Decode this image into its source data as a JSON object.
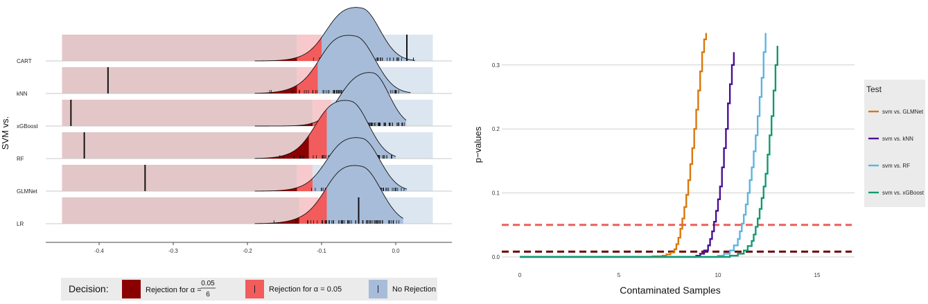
{
  "colors": {
    "zone_dark": "#e3c6c8",
    "zone_light": "#f7c9cc",
    "zone_blue": "#dbe6f0",
    "reject_dark": "#8b0000",
    "reject_light": "#f25c5c",
    "norej": "#a7bcd9",
    "orange": "#d9770e",
    "purple": "#4b0f91",
    "lightblue": "#5bb5df",
    "green": "#119a72",
    "line_red": "#e8605c",
    "line_darkred": "#6d0000"
  },
  "chart_data": [
    {
      "type": "ridgeline",
      "xlabel": "",
      "ylabel": "SVM vs.",
      "xlim": [
        -0.47,
        0.06
      ],
      "xticks": [
        "-0.4",
        "-0.3",
        "-0.2",
        "-0.1",
        "0.0"
      ],
      "xtick_values": [
        -0.4,
        -0.3,
        -0.2,
        -0.1,
        0.0
      ],
      "categories": [
        "CART",
        "kNN",
        "xGBoost",
        "RF",
        "GLMNet",
        "LR"
      ],
      "series": [
        {
          "name": "CART",
          "observed": 0.015,
          "crit_dark": -0.133,
          "crit_light": -0.1,
          "mode": -0.045,
          "spread": 0.028,
          "tail_start": -0.19,
          "tail_end": 0.026
        },
        {
          "name": "kNN",
          "observed": -0.388,
          "crit_dark": -0.133,
          "crit_light": -0.105,
          "mode": -0.053,
          "spread": 0.03,
          "tail_start": -0.19,
          "tail_end": 0.02
        },
        {
          "name": "xGBoost",
          "observed": -0.438,
          "crit_dark": -0.112,
          "crit_light": -0.087,
          "mode": -0.03,
          "spread": 0.025,
          "tail_start": -0.19,
          "tail_end": 0.014
        },
        {
          "name": "RF",
          "observed": -0.42,
          "crit_dark": -0.117,
          "crit_light": -0.093,
          "mode": -0.06,
          "spread": 0.028,
          "tail_start": -0.19,
          "tail_end": 0.0
        },
        {
          "name": "GLMNet",
          "observed": -0.338,
          "crit_dark": -0.133,
          "crit_light": -0.112,
          "mode": -0.045,
          "spread": 0.028,
          "tail_start": -0.19,
          "tail_end": 0.015
        },
        {
          "name": "LR",
          "observed": -0.05,
          "crit_dark": -0.13,
          "crit_light": -0.093,
          "mode": -0.045,
          "spread": 0.03,
          "tail_start": -0.19,
          "tail_end": 0.01
        }
      ],
      "zone_range": [
        -0.45,
        0.05
      ],
      "decision_legend": {
        "title": "Decision:",
        "items": [
          {
            "label": "Rejection for α =",
            "frac_num": "0.05",
            "frac_den": "6",
            "color_key": "reject_dark"
          },
          {
            "label": "Rejection for α = 0.05",
            "color_key": "reject_light"
          },
          {
            "label": "No Rejection",
            "color_key": "norej"
          }
        ]
      }
    },
    {
      "type": "line",
      "xlabel": "Contaminated Samples",
      "ylabel": "p−values",
      "xlim": [
        -0.5,
        16.8
      ],
      "ylim": [
        -0.005,
        0.35
      ],
      "xticks": [
        "0",
        "5",
        "10",
        "15"
      ],
      "xtick_values": [
        0,
        5,
        10,
        15
      ],
      "yticks": [
        "0.0",
        "0.1",
        "0.2",
        "0.3"
      ],
      "ytick_values": [
        0.0,
        0.1,
        0.2,
        0.3
      ],
      "hlines": [
        {
          "y": 0.05,
          "color_key": "line_red"
        },
        {
          "y": 0.0083,
          "color_key": "line_darkred"
        }
      ],
      "legend_title": "Test",
      "series": [
        {
          "name": "svm vs. GLMNet",
          "color_key": "orange",
          "x": [
            0,
            6.6,
            6.7,
            7.2,
            7.4,
            7.6,
            7.8,
            7.9,
            8.0,
            8.1,
            8.2,
            8.3,
            8.4,
            8.5,
            8.6,
            8.7,
            8.8,
            8.9,
            9.0,
            9.1,
            9.2,
            9.3,
            9.4
          ],
          "y": [
            0,
            0,
            0.001,
            0.002,
            0.004,
            0.007,
            0.012,
            0.02,
            0.03,
            0.044,
            0.06,
            0.078,
            0.097,
            0.12,
            0.145,
            0.17,
            0.2,
            0.23,
            0.26,
            0.29,
            0.32,
            0.34,
            0.35
          ]
        },
        {
          "name": "svm vs. kNN",
          "color_key": "purple",
          "x": [
            0,
            8.6,
            8.9,
            9.1,
            9.3,
            9.5,
            9.6,
            9.7,
            9.8,
            9.9,
            10.0,
            10.1,
            10.2,
            10.3,
            10.4,
            10.5,
            10.6,
            10.7,
            10.8
          ],
          "y": [
            0,
            0,
            0.002,
            0.005,
            0.01,
            0.018,
            0.028,
            0.04,
            0.055,
            0.072,
            0.09,
            0.11,
            0.14,
            0.17,
            0.2,
            0.24,
            0.27,
            0.3,
            0.32
          ]
        },
        {
          "name": "svm vs. RF",
          "color_key": "lightblue",
          "x": [
            0,
            9.6,
            10.0,
            10.3,
            10.6,
            10.8,
            11.0,
            11.1,
            11.2,
            11.3,
            11.4,
            11.5,
            11.6,
            11.7,
            11.8,
            11.9,
            12.0,
            12.1,
            12.2,
            12.3,
            12.4
          ],
          "y": [
            0,
            0,
            0.002,
            0.005,
            0.01,
            0.018,
            0.028,
            0.04,
            0.052,
            0.066,
            0.082,
            0.1,
            0.12,
            0.14,
            0.165,
            0.19,
            0.22,
            0.25,
            0.28,
            0.32,
            0.35
          ]
        },
        {
          "name": "svm vs. xGBoost",
          "color_key": "green",
          "x": [
            0,
            10.0,
            10.6,
            11.0,
            11.3,
            11.5,
            11.7,
            11.8,
            11.9,
            12.0,
            12.1,
            12.2,
            12.3,
            12.4,
            12.5,
            12.6,
            12.7,
            12.8,
            12.9,
            13.0
          ],
          "y": [
            0,
            0,
            0.002,
            0.005,
            0.01,
            0.017,
            0.025,
            0.035,
            0.047,
            0.06,
            0.075,
            0.092,
            0.11,
            0.13,
            0.16,
            0.19,
            0.22,
            0.26,
            0.3,
            0.33
          ]
        }
      ]
    }
  ]
}
